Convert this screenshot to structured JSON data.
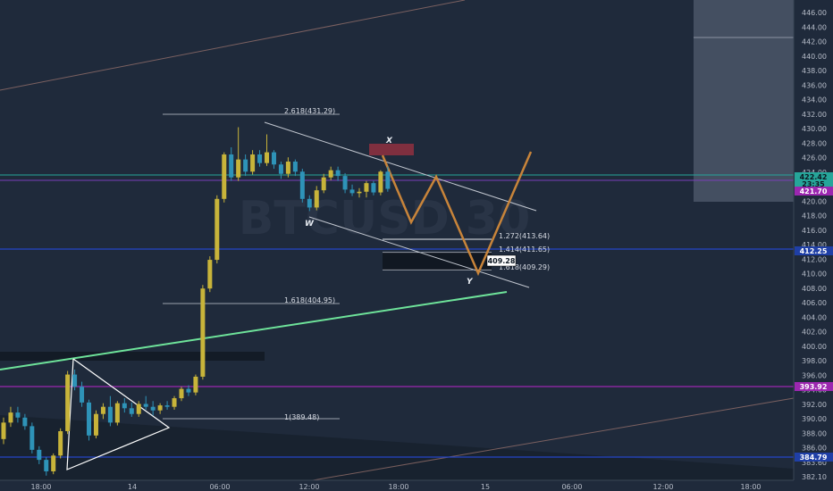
{
  "chart_data": {
    "type": "candlestick",
    "watermark": "BTCUSD 30",
    "y_axis": {
      "min": 382,
      "max": 447,
      "ticks": [
        "446.00",
        "444.00",
        "442.00",
        "440.00",
        "438.00",
        "436.00",
        "434.00",
        "432.00",
        "430.00",
        "428.00",
        "426.00",
        "424.00",
        "422.00",
        "420.00",
        "418.00",
        "416.00",
        "414.00",
        "412.00",
        "410.00",
        "408.00",
        "406.00",
        "404.00",
        "402.00",
        "400.00",
        "398.00",
        "396.00",
        "394.00",
        "392.00",
        "390.00",
        "388.00",
        "386.00",
        "383.60",
        "382.10"
      ]
    },
    "x_axis": {
      "ticks": [
        "18:00",
        "14",
        "06:00",
        "12:00",
        "18:00",
        "15",
        "06:00",
        "12:00",
        "18:00"
      ]
    },
    "price_labels": [
      {
        "value": "422.42",
        "bg": "#26a69a",
        "fg": "#0c1620"
      },
      {
        "value": "23:35",
        "bg": "#26a69a",
        "fg": "#0c1620"
      },
      {
        "value": "421.70",
        "bg": "#9c27b0",
        "fg": "#ffffff"
      },
      {
        "value": "412.25",
        "bg": "#1f3fa6",
        "fg": "#ffffff"
      },
      {
        "value": "393.92",
        "bg": "#9c27b0",
        "fg": "#ffffff"
      },
      {
        "value": "384.79",
        "bg": "#1f3fa6",
        "fg": "#ffffff"
      }
    ],
    "fib_levels": [
      {
        "label": "2.618(431.29)",
        "value": 431.29
      },
      {
        "label": "1.618(404.95)",
        "value": 404.95
      },
      {
        "label": "1(389.48)",
        "value": 389.48
      },
      {
        "label": "1.272(413.64)",
        "value": 413.64
      },
      {
        "label": "1.414(411.65)",
        "value": 411.65
      },
      {
        "label": "1.618(409.29)",
        "value": 409.29
      }
    ],
    "target_label": "409.28",
    "wave_labels": [
      "X",
      "W",
      "Y"
    ],
    "colors": {
      "up": "#c8b43a",
      "down": "#2e93b8",
      "projection": "#c8843a",
      "trendline": "#6ee39a",
      "channel": "#c2c7d0",
      "purple": "#9c27b0",
      "blue_line": "#2446c8"
    },
    "candles": [
      [
        387.5,
        390.5,
        386.8,
        389.8
      ],
      [
        389.8,
        392.0,
        389.2,
        391.2
      ],
      [
        391.2,
        392.0,
        389.8,
        390.5
      ],
      [
        390.5,
        391.0,
        388.8,
        389.3
      ],
      [
        389.3,
        389.8,
        385.5,
        386.0
      ],
      [
        386.0,
        386.5,
        384.0,
        384.6
      ],
      [
        384.6,
        385.0,
        382.4,
        383.0
      ],
      [
        383.0,
        385.5,
        382.6,
        385.2
      ],
      [
        385.2,
        389.0,
        384.8,
        388.6
      ],
      [
        388.6,
        397.0,
        388.2,
        396.5
      ],
      [
        396.5,
        397.2,
        394.3,
        394.8
      ],
      [
        394.8,
        395.5,
        392.0,
        392.6
      ],
      [
        392.6,
        393.0,
        387.3,
        388.0
      ],
      [
        388.0,
        391.5,
        387.6,
        391.0
      ],
      [
        391.0,
        392.5,
        390.3,
        392.0
      ],
      [
        392.0,
        393.5,
        389.3,
        389.8
      ],
      [
        389.8,
        392.8,
        389.4,
        392.5
      ],
      [
        392.5,
        393.2,
        391.2,
        391.8
      ],
      [
        391.8,
        392.6,
        390.6,
        391.0
      ],
      [
        391.0,
        392.8,
        390.6,
        392.4
      ],
      [
        392.4,
        393.5,
        391.6,
        392.0
      ],
      [
        392.0,
        392.8,
        390.8,
        391.5
      ],
      [
        391.5,
        392.5,
        391.0,
        392.2
      ],
      [
        392.2,
        392.8,
        391.6,
        392.0
      ],
      [
        392.0,
        393.5,
        391.6,
        393.2
      ],
      [
        393.2,
        394.8,
        392.8,
        394.5
      ],
      [
        394.5,
        395.0,
        393.5,
        394.0
      ],
      [
        394.0,
        396.5,
        393.6,
        396.2
      ],
      [
        396.2,
        409.0,
        395.8,
        408.5
      ],
      [
        408.5,
        413.0,
        408.0,
        412.5
      ],
      [
        412.5,
        421.5,
        412.0,
        421.0
      ],
      [
        421.0,
        427.5,
        420.5,
        427.2
      ],
      [
        427.2,
        428.2,
        423.5,
        424.0
      ],
      [
        424.0,
        431.0,
        423.5,
        426.5
      ],
      [
        426.5,
        427.2,
        424.2,
        424.8
      ],
      [
        424.8,
        427.8,
        424.4,
        427.2
      ],
      [
        427.2,
        427.8,
        425.5,
        426.0
      ],
      [
        426.0,
        430.0,
        425.6,
        427.5
      ],
      [
        427.5,
        427.8,
        425.2,
        425.8
      ],
      [
        425.8,
        426.2,
        423.8,
        424.5
      ],
      [
        424.5,
        426.8,
        424.0,
        426.2
      ],
      [
        426.2,
        426.5,
        424.2,
        424.8
      ],
      [
        424.8,
        425.2,
        420.5,
        421.0
      ],
      [
        421.0,
        421.5,
        419.3,
        419.8
      ],
      [
        419.8,
        422.8,
        419.4,
        422.2
      ],
      [
        422.2,
        424.5,
        421.8,
        424.0
      ],
      [
        424.0,
        425.5,
        423.6,
        425.0
      ],
      [
        425.0,
        425.5,
        423.5,
        424.2
      ],
      [
        424.2,
        424.6,
        421.8,
        422.3
      ],
      [
        422.3,
        423.0,
        421.4,
        421.8
      ],
      [
        421.8,
        422.5,
        421.2,
        422.0
      ],
      [
        422.0,
        423.5,
        421.2,
        423.2
      ],
      [
        423.2,
        423.5,
        421.5,
        421.9
      ],
      [
        421.9,
        425.0,
        421.5,
        424.8
      ],
      [
        424.8,
        425.5,
        422.0,
        422.4
      ]
    ]
  }
}
